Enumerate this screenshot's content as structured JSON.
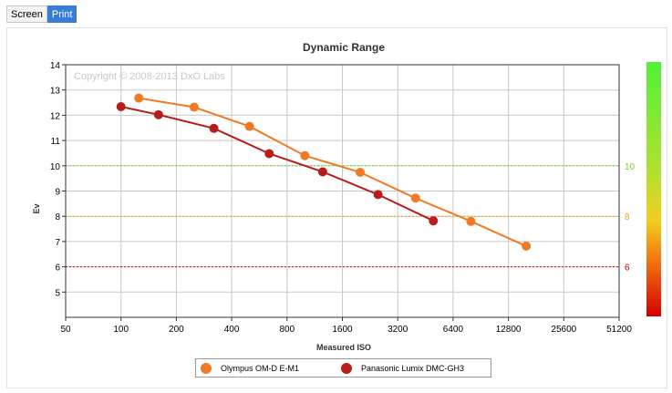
{
  "toolbar": {
    "tabs": [
      {
        "label": "Screen",
        "active": false
      },
      {
        "label": "Print",
        "active": true
      }
    ]
  },
  "chart_data": {
    "type": "line",
    "title": "Dynamic Range",
    "xlabel": "Measured ISO",
    "ylabel": "Ev",
    "x_scale": "log2",
    "x_ticks": [
      50,
      100,
      200,
      400,
      800,
      1600,
      3200,
      6400,
      12800,
      25600,
      51200
    ],
    "y_ticks": [
      5,
      6,
      7,
      8,
      9,
      10,
      11,
      12,
      13,
      14
    ],
    "ylim": [
      4,
      14
    ],
    "grid": true,
    "watermark": "Copyright © 2008-2013 DxO Labs",
    "reference_lines": [
      {
        "value": 10,
        "label": "10",
        "color": "#6fd32a"
      },
      {
        "value": 8,
        "label": "8",
        "color": "#f0a000"
      },
      {
        "value": 6,
        "label": "6",
        "color": "#cc0000"
      }
    ],
    "legend_position": "bottom",
    "series": [
      {
        "name": "Olympus OM-D E-M1",
        "color": "#f07a24",
        "x": [
          125,
          250,
          500,
          1000,
          2000,
          4000,
          8000,
          16000
        ],
        "y": [
          12.68,
          12.32,
          11.56,
          10.4,
          9.74,
          8.72,
          7.8,
          6.82
        ]
      },
      {
        "name": "Panasonic Lumix DMC-GH3",
        "color": "#b81c1c",
        "x": [
          100,
          160,
          320,
          640,
          1250,
          2500,
          5000
        ],
        "y": [
          12.34,
          12.02,
          11.48,
          10.48,
          9.76,
          8.86,
          7.82
        ]
      }
    ]
  }
}
